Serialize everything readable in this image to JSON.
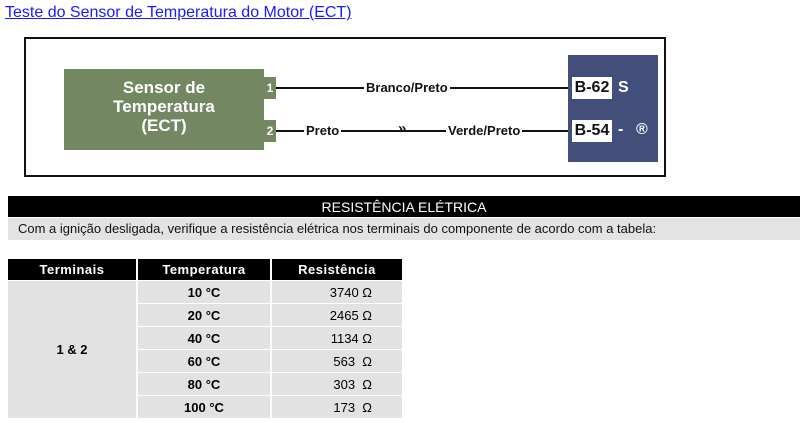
{
  "title": "Teste do Sensor de Temperatura do Motor (ECT)",
  "diagram": {
    "sensor_label": [
      "Sensor de",
      "Temperatura",
      "(ECT)"
    ],
    "pins": [
      "1",
      "2"
    ],
    "wire1": "Branco/Preto",
    "wire2_left": "Preto",
    "wire2_right": "Verde/Preto",
    "connector1": "B-62",
    "connector1_side": "S",
    "connector2": "B-54",
    "connector2_side": "-",
    "connector2_symbol": "®",
    "colors": {
      "sensor": "#738762",
      "ecu": "#414f7a"
    }
  },
  "section": {
    "heading": "RESISTÊNCIA ELÉTRICA",
    "note": "Com a ignição desligada, verifique a resistência elétrica nos terminais do componente de acordo com a tabela:"
  },
  "table": {
    "headers": [
      "Terminais",
      "Temperatura",
      "Resistência"
    ],
    "terminals": "1 & 2",
    "rows": [
      {
        "temp": "10 °C",
        "res": "3740 Ω"
      },
      {
        "temp": "20 °C",
        "res": "2465 Ω"
      },
      {
        "temp": "40 °C",
        "res": "1134 Ω"
      },
      {
        "temp": "60 °C",
        "res": "563  Ω"
      },
      {
        "temp": "80 °C",
        "res": "303  Ω"
      },
      {
        "temp": "100 °C",
        "res": "173  Ω"
      }
    ]
  }
}
